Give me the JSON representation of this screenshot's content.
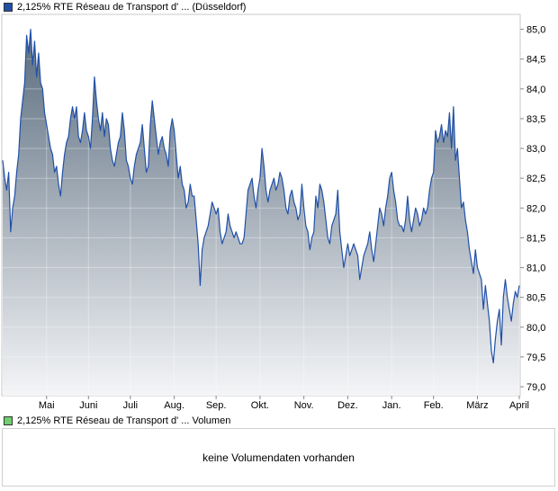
{
  "legend": {
    "price_label": "2,125% RTE Réseau de Transport d' ... (Düsseldorf)",
    "price_color": "#2050a8",
    "volume_label": "2,125% RTE Réseau de Transport d' ... Volumen",
    "volume_color": "#6fcf6f"
  },
  "volume": {
    "empty_message": "keine Volumendaten vorhanden"
  },
  "chart_data": {
    "type": "area",
    "title": "",
    "xlabel": "",
    "ylabel": "",
    "ylim": [
      78.85,
      85.25
    ],
    "y_ticks": [
      "85,0",
      "84,5",
      "84,0",
      "83,5",
      "83,0",
      "82,5",
      "82,0",
      "81,5",
      "81,0",
      "80,5",
      "80,0",
      "79,5",
      "79,0"
    ],
    "y_tick_values": [
      85.0,
      84.5,
      84.0,
      83.5,
      83.0,
      82.5,
      82.0,
      81.5,
      81.0,
      80.5,
      80.0,
      79.5,
      79.0
    ],
    "x_ticks": [
      "Mai",
      "Juni",
      "Juli",
      "Aug.",
      "Sep.",
      "Okt.",
      "Nov.",
      "Dez.",
      "Jan.",
      "Feb.",
      "März",
      "April"
    ],
    "x_tick_index": [
      22,
      43,
      64,
      86,
      107,
      129,
      151,
      173,
      195,
      216,
      238,
      259
    ],
    "grid": true,
    "line_color": "#2050a8",
    "fill_top_color": "#5a6c7e",
    "fill_bottom_color": "#f4f5f7",
    "series": [
      {
        "values": [
          82.8,
          82.5,
          82.3,
          82.6,
          81.6,
          82.0,
          82.2,
          82.6,
          82.9,
          83.5,
          83.8,
          84.1,
          84.9,
          84.6,
          85.0,
          84.4,
          84.8,
          84.2,
          84.6,
          84.1,
          84.0,
          83.6,
          83.4,
          83.2,
          83.0,
          82.9,
          82.6,
          82.7,
          82.4,
          82.2,
          82.6,
          82.9,
          83.1,
          83.2,
          83.5,
          83.7,
          83.5,
          83.7,
          83.2,
          83.1,
          83.3,
          83.6,
          83.3,
          83.2,
          83.0,
          83.5,
          84.2,
          83.8,
          83.5,
          83.3,
          83.6,
          83.2,
          83.5,
          83.4,
          83.0,
          82.8,
          82.7,
          82.9,
          83.1,
          83.2,
          83.6,
          83.3,
          82.8,
          82.7,
          82.5,
          82.4,
          82.7,
          82.9,
          83.0,
          83.1,
          83.4,
          83.0,
          82.6,
          82.7,
          83.4,
          83.8,
          83.5,
          83.2,
          82.9,
          83.1,
          83.2,
          83.0,
          82.9,
          82.7,
          83.3,
          83.5,
          83.3,
          82.9,
          82.5,
          82.7,
          82.4,
          82.3,
          82.0,
          82.1,
          82.4,
          82.2,
          82.2,
          81.8,
          81.4,
          80.7,
          81.3,
          81.5,
          81.6,
          81.7,
          81.9,
          82.1,
          82.0,
          81.9,
          82.0,
          81.6,
          81.4,
          81.5,
          81.6,
          81.9,
          81.7,
          81.6,
          81.5,
          81.6,
          81.5,
          81.4,
          81.4,
          81.5,
          81.9,
          82.3,
          82.4,
          82.5,
          82.2,
          82.0,
          82.3,
          82.5,
          83.0,
          82.7,
          82.3,
          82.1,
          82.3,
          82.4,
          82.5,
          82.3,
          82.4,
          82.6,
          82.5,
          82.3,
          82.0,
          81.9,
          82.2,
          82.3,
          82.1,
          82.0,
          81.8,
          81.9,
          82.4,
          82.0,
          81.7,
          81.6,
          81.3,
          81.5,
          81.6,
          82.2,
          82.0,
          82.4,
          82.3,
          82.1,
          81.8,
          81.5,
          81.4,
          81.7,
          81.8,
          81.9,
          82.3,
          81.6,
          81.3,
          81.0,
          81.2,
          81.4,
          81.2,
          81.3,
          81.4,
          81.3,
          81.2,
          80.8,
          81.0,
          81.2,
          81.3,
          81.4,
          81.6,
          81.3,
          81.1,
          81.4,
          81.7,
          82.0,
          81.9,
          81.7,
          82.0,
          82.2,
          82.5,
          82.6,
          82.3,
          82.1,
          81.8,
          81.7,
          81.7,
          81.6,
          81.8,
          82.2,
          81.8,
          81.6,
          81.8,
          82.0,
          81.9,
          81.7,
          81.8,
          82.0,
          81.9,
          82.0,
          82.3,
          82.5,
          82.6,
          83.3,
          83.1,
          83.2,
          83.4,
          83.1,
          83.3,
          83.2,
          83.6,
          83.0,
          83.7,
          82.8,
          83.0,
          82.5,
          82.0,
          82.1,
          81.8,
          81.6,
          81.3,
          81.1,
          80.9,
          81.3,
          81.0,
          80.9,
          80.8,
          80.3,
          80.7,
          80.4,
          80.1,
          79.6,
          79.4,
          79.8,
          80.1,
          80.3,
          79.7,
          80.5,
          80.8,
          80.5,
          80.3,
          80.1,
          80.4,
          80.6,
          80.5,
          80.7
        ]
      }
    ]
  }
}
